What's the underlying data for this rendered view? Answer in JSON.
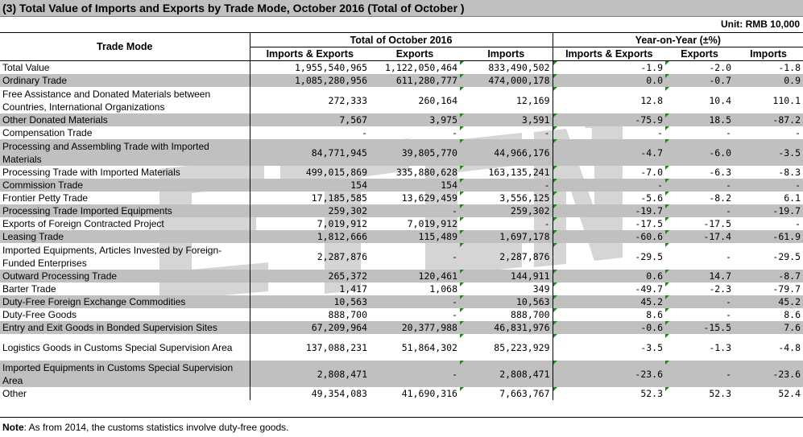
{
  "title": "(3) Total Value of Imports and Exports by Trade Mode, October 2016 (Total of October )",
  "unit": "Unit: RMB 10,000",
  "headers": {
    "trade_mode": "Trade Mode",
    "group1": "Total of October 2016",
    "group2": "Year-on-Year (±%)",
    "imports_exports": "Imports & Exports",
    "exports": "Exports",
    "imports": "Imports"
  },
  "rows": [
    {
      "label": "Total Value",
      "ie": "1,955,540,965",
      "ex": "1,122,050,464",
      "im": "833,490,502",
      "yie": "-1.9",
      "yex": "-2.0",
      "yim": "-1.8"
    },
    {
      "label": "Ordinary Trade",
      "ie": "1,085,280,956",
      "ex": "611,280,777",
      "im": "474,000,178",
      "yie": "0.0",
      "yex": "-0.7",
      "yim": "0.9"
    },
    {
      "label": "Free Assistance and Donated Materials between Countries, International Organizations",
      "ie": "272,333",
      "ex": "260,164",
      "im": "12,169",
      "yie": "12.8",
      "yex": "10.4",
      "yim": "110.1"
    },
    {
      "label": "Other Donated Materials",
      "ie": "7,567",
      "ex": "3,975",
      "im": "3,591",
      "yie": "-75.9",
      "yex": "18.5",
      "yim": "-87.2"
    },
    {
      "label": "Compensation Trade",
      "ie": "-",
      "ex": "-",
      "im": "-",
      "yie": "-",
      "yex": "-",
      "yim": "-"
    },
    {
      "label": "Processing and Assembling Trade with Imported Materials",
      "ie": "84,771,945",
      "ex": "39,805,770",
      "im": "44,966,176",
      "yie": "-4.7",
      "yex": "-6.0",
      "yim": "-3.5"
    },
    {
      "label": "Processing Trade with Imported Materials",
      "ie": "499,015,869",
      "ex": "335,880,628",
      "im": "163,135,241",
      "yie": "-7.0",
      "yex": "-6.3",
      "yim": "-8.3"
    },
    {
      "label": "Commission Trade",
      "ie": "154",
      "ex": "154",
      "im": "-",
      "yie": "-",
      "yex": "-",
      "yim": "-"
    },
    {
      "label": "Frontier Petty Trade",
      "ie": "17,185,585",
      "ex": "13,629,459",
      "im": "3,556,125",
      "yie": "-5.6",
      "yex": "-8.2",
      "yim": "6.1"
    },
    {
      "label": "Processing Trade Imported Equipments",
      "ie": "259,302",
      "ex": "-",
      "im": "259,302",
      "yie": "-19.7",
      "yex": "-",
      "yim": "-19.7"
    },
    {
      "label": "Exports of Foreign Contracted Project",
      "ie": "7,019,912",
      "ex": "7,019,912",
      "im": "-",
      "yie": "-17.5",
      "yex": "-17.5",
      "yim": "-"
    },
    {
      "label": "Leasing Trade",
      "ie": "1,812,666",
      "ex": "115,489",
      "im": "1,697,178",
      "yie": "-60.6",
      "yex": "-17.4",
      "yim": "-61.9"
    },
    {
      "label": "Imported Equipments, Articles Invested by Foreign-Funded Enterprises",
      "ie": "2,287,876",
      "ex": "-",
      "im": "2,287,876",
      "yie": "-29.5",
      "yex": "-",
      "yim": "-29.5"
    },
    {
      "label": "Outward Processing Trade",
      "ie": "265,372",
      "ex": "120,461",
      "im": "144,911",
      "yie": "0.6",
      "yex": "14.7",
      "yim": "-8.7"
    },
    {
      "label": "Barter Trade",
      "ie": "1,417",
      "ex": "1,068",
      "im": "349",
      "yie": "-49.7",
      "yex": "-2.3",
      "yim": "-79.7"
    },
    {
      "label": "Duty-Free Foreign Exchange Commodities",
      "ie": "10,563",
      "ex": "-",
      "im": "10,563",
      "yie": "45.2",
      "yex": "-",
      "yim": "45.2"
    },
    {
      "label": "Duty-Free Goods",
      "ie": "888,700",
      "ex": "-",
      "im": "888,700",
      "yie": "8.6",
      "yex": "-",
      "yim": "8.6"
    },
    {
      "label": "Entry and Exit Goods in Bonded Supervision Sites",
      "ie": "67,209,964",
      "ex": "20,377,988",
      "im": "46,831,976",
      "yie": "-0.6",
      "yex": "-15.5",
      "yim": "7.6"
    },
    {
      "label": "Logistics Goods in Customs Special Supervision Area",
      "ie": "137,088,231",
      "ex": "51,864,302",
      "im": "85,223,929",
      "yie": "-3.5",
      "yex": "-1.3",
      "yim": "-4.8"
    },
    {
      "label": "Imported Equipments in Customs Special Supervision Area",
      "ie": "2,808,471",
      "ex": "-",
      "im": "2,808,471",
      "yie": "-23.6",
      "yex": "-",
      "yim": "-23.6"
    },
    {
      "label": "Other",
      "ie": "49,354,083",
      "ex": "41,690,316",
      "im": "7,663,767",
      "yie": "52.3",
      "yex": "52.3",
      "yim": "52.4"
    }
  ],
  "note_label": "Note",
  "note_text": ": As from 2014, the customs statistics involve duty-free goods.",
  "watermark": "ETCN",
  "watermark_tm": "TM"
}
